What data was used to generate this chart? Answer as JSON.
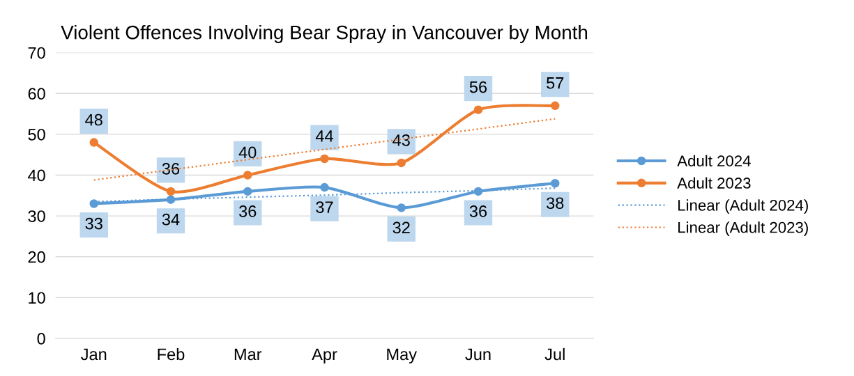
{
  "chart_data": {
    "type": "line",
    "title": "Violent Offences Involving Bear Spray in Vancouver by Month",
    "categories": [
      "Jan",
      "Feb",
      "Mar",
      "Apr",
      "May",
      "Jun",
      "Jul"
    ],
    "series": [
      {
        "name": "Adult 2024",
        "color": "#5b9bd5",
        "values": [
          33,
          34,
          36,
          37,
          32,
          36,
          38
        ],
        "value_labels": [
          "33",
          "34",
          "36",
          "37",
          "32",
          "36",
          "38"
        ],
        "marker": "circle",
        "line_style": "solid"
      },
      {
        "name": "Adult 2023",
        "color": "#ed7d31",
        "values": [
          48,
          36,
          40,
          44,
          43,
          56,
          57
        ],
        "value_labels": [
          "48",
          "36",
          "40",
          "44",
          "43",
          "56",
          "57"
        ],
        "marker": "circle",
        "line_style": "solid"
      },
      {
        "name": "Linear (Adult 2024)",
        "color": "#5b9bd5",
        "values": [
          33.5,
          34.1,
          34.6,
          35.1,
          35.7,
          36.2,
          36.8
        ],
        "marker": "none",
        "line_style": "dotted"
      },
      {
        "name": "Linear (Adult 2023)",
        "color": "#ed7d31",
        "values": [
          38.8,
          41.3,
          43.8,
          46.3,
          48.8,
          51.3,
          53.8
        ],
        "marker": "none",
        "line_style": "dotted"
      }
    ],
    "ylim": [
      0,
      70
    ],
    "yticks": [
      0,
      10,
      20,
      30,
      40,
      50,
      60,
      70
    ],
    "grid": "y",
    "legend": "right"
  }
}
